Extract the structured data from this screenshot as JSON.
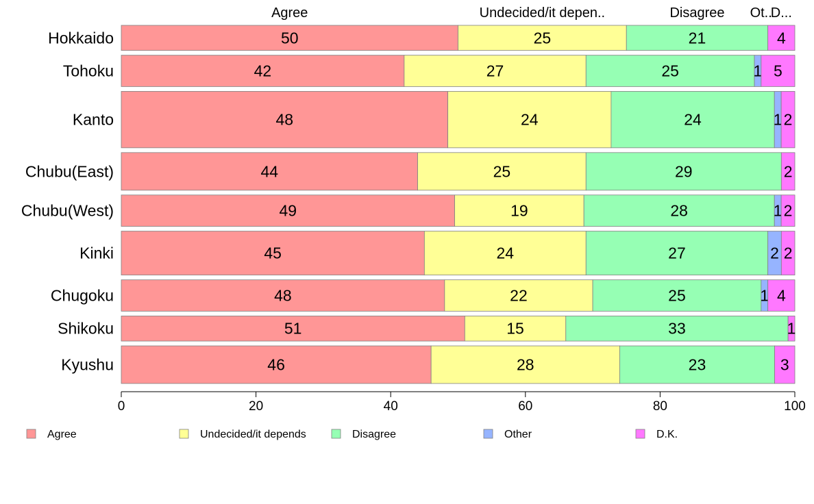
{
  "chart_data": {
    "type": "bar",
    "orientation": "horizontal",
    "stacked": true,
    "categories": [
      "Hokkaido",
      "Tohoku",
      "Kanto",
      "Chubu(East)",
      "Chubu(West)",
      "Kinki",
      "Chugoku",
      "Shikoku",
      "Kyushu"
    ],
    "series": [
      {
        "name": "Agree",
        "color": "#ff9696",
        "values": [
          50,
          42,
          48,
          44,
          49,
          45,
          48,
          51,
          46
        ]
      },
      {
        "name": "Undecided/it depends",
        "color": "#ffff96",
        "values": [
          25,
          27,
          24,
          25,
          19,
          24,
          22,
          15,
          28
        ]
      },
      {
        "name": "Disagree",
        "color": "#96ffb4",
        "values": [
          21,
          25,
          24,
          29,
          28,
          27,
          25,
          33,
          23
        ]
      },
      {
        "name": "Other",
        "color": "#96b4ff",
        "values": [
          0,
          1,
          1,
          0,
          1,
          2,
          1,
          0,
          0
        ]
      },
      {
        "name": "D.K.",
        "color": "#ff78ff",
        "values": [
          4,
          5,
          2,
          2,
          2,
          2,
          4,
          1,
          3
        ]
      }
    ],
    "row_weights": [
      4,
      5,
      9,
      6,
      5,
      7,
      5,
      4,
      6
    ],
    "top_labels": [
      "Agree",
      "Undecided/it depen..",
      "Disagree",
      "Ot..",
      "D..."
    ],
    "xlim": [
      0,
      100
    ],
    "xticks": [
      0,
      20,
      40,
      60,
      80,
      100
    ],
    "title": "",
    "xlabel": "",
    "ylabel": "",
    "grid": false,
    "legend_position": "bottom"
  }
}
